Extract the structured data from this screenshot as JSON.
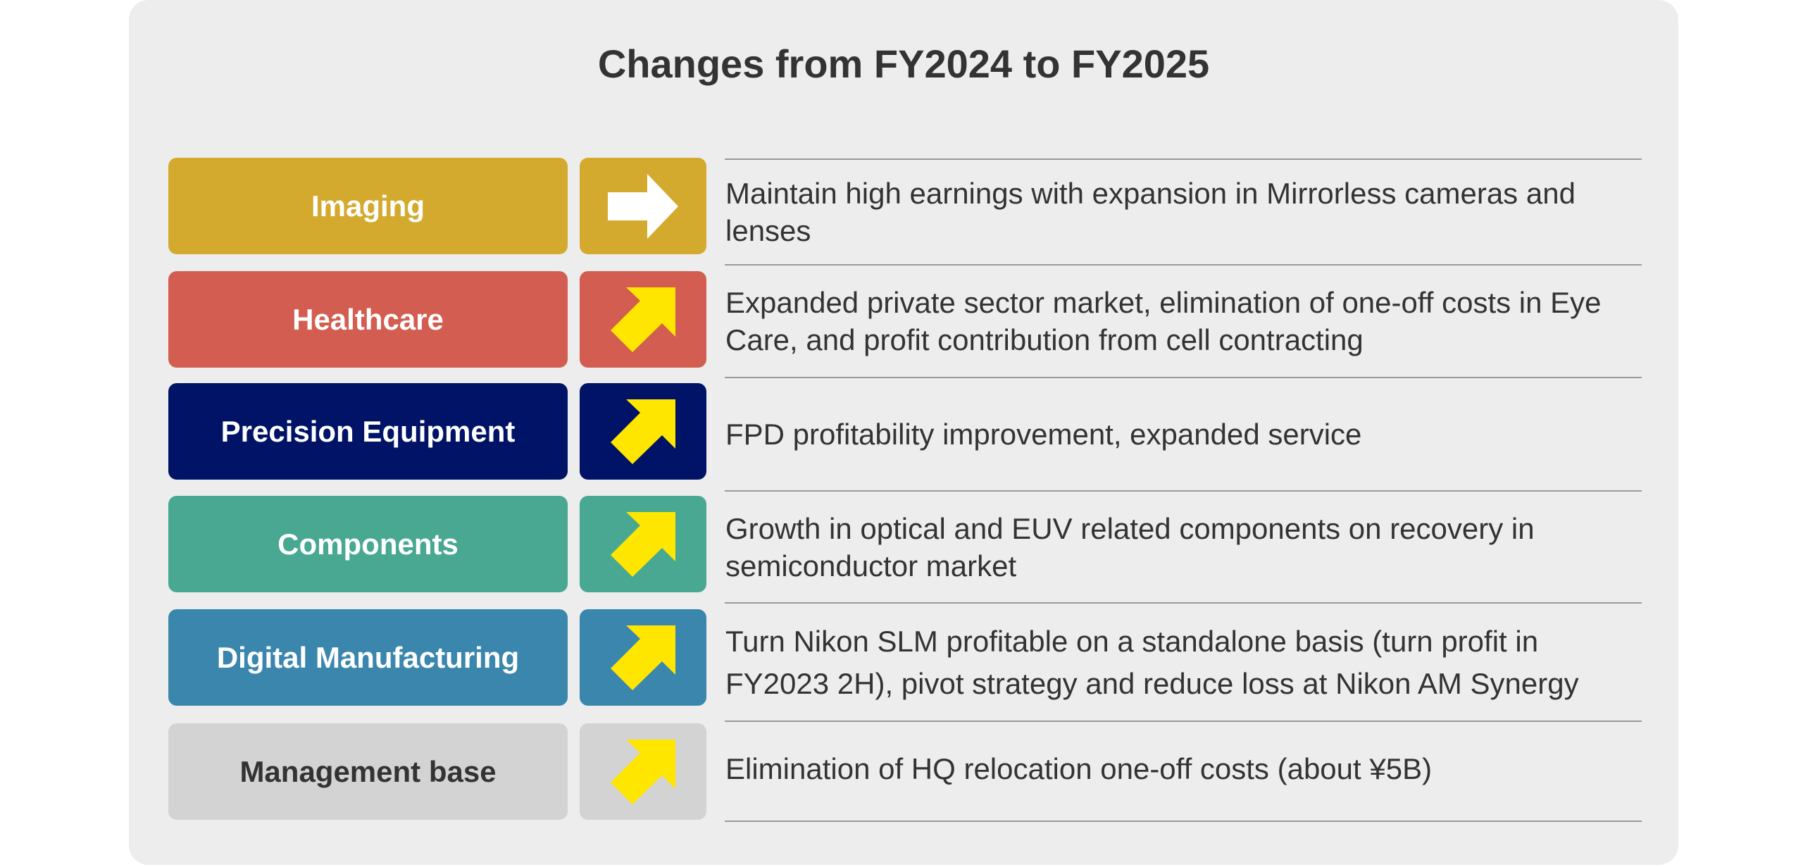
{
  "title": "Changes from FY2024 to FY2025",
  "rows": [
    {
      "segment": "Imaging",
      "color": "#d4aa2e",
      "text_color": "#ffffff",
      "arrow": "right-arrow-icon",
      "arrow_color": "#ffffff",
      "description": "Maintain high earnings with expansion in Mirrorless cameras and lenses"
    },
    {
      "segment": "Healthcare",
      "color": "#d25d50",
      "text_color": "#ffffff",
      "arrow": "up-right-arrow-icon",
      "arrow_color": "#ffe600",
      "description": "Expanded private sector market, elimination of one-off costs in Eye Care, and profit contribution from cell contracting"
    },
    {
      "segment": "Precision Equipment",
      "color": "#001366",
      "text_color": "#ffffff",
      "arrow": "up-right-arrow-icon",
      "arrow_color": "#ffe600",
      "description": "FPD profitability improvement, expanded service"
    },
    {
      "segment": "Components",
      "color": "#48a892",
      "text_color": "#ffffff",
      "arrow": "up-right-arrow-icon",
      "arrow_color": "#ffe600",
      "description": "Growth in optical and EUV related components on recovery in semiconductor market"
    },
    {
      "segment": "Digital Manufacturing",
      "color": "#3a86ad",
      "text_color": "#ffffff",
      "arrow": "up-right-arrow-icon",
      "arrow_color": "#ffe600",
      "description": "Turn Nikon SLM profitable on a standalone basis (turn profit in FY2023 2H), pivot strategy and reduce loss at Nikon AM Synergy"
    },
    {
      "segment": "Management base",
      "color": "#d3d3d3",
      "text_color": "#333333",
      "arrow": "up-right-arrow-icon",
      "arrow_color": "#ffe600",
      "description": "Elimination of HQ relocation one-off costs (about ¥5B)"
    }
  ]
}
